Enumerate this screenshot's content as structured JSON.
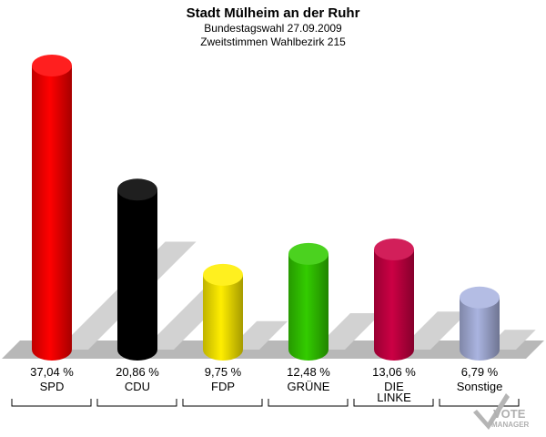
{
  "chart_data": {
    "type": "bar",
    "title": "Stadt Mülheim an der Ruhr",
    "subtitle": "Bundestagswahl 27.09.2009",
    "subtitle2": "Zweitstimmen Wahlbezirk 215",
    "categories": [
      "SPD",
      "CDU",
      "FDP",
      "GRÜNE",
      "DIE LINKE",
      "Sonstige"
    ],
    "category_lines": [
      [
        "SPD"
      ],
      [
        "CDU"
      ],
      [
        "FDP"
      ],
      [
        "GRÜNE"
      ],
      [
        "DIE",
        "LINKE"
      ],
      [
        "Sonstige"
      ]
    ],
    "values": [
      37.04,
      20.86,
      9.75,
      12.48,
      13.06,
      6.79
    ],
    "value_labels": [
      "37,04 %",
      "20,86 %",
      "9,75 %",
      "12,48 %",
      "13,06 %",
      "6,79 %"
    ],
    "colors": [
      "#ff0000",
      "#000000",
      "#ffee00",
      "#33cc00",
      "#cc0044",
      "#aab4e0"
    ],
    "ylim": [
      0,
      37.04
    ],
    "grid": false,
    "legend": "none"
  },
  "logo": {
    "line1": "VOTE",
    "line2": "MANAGER"
  }
}
